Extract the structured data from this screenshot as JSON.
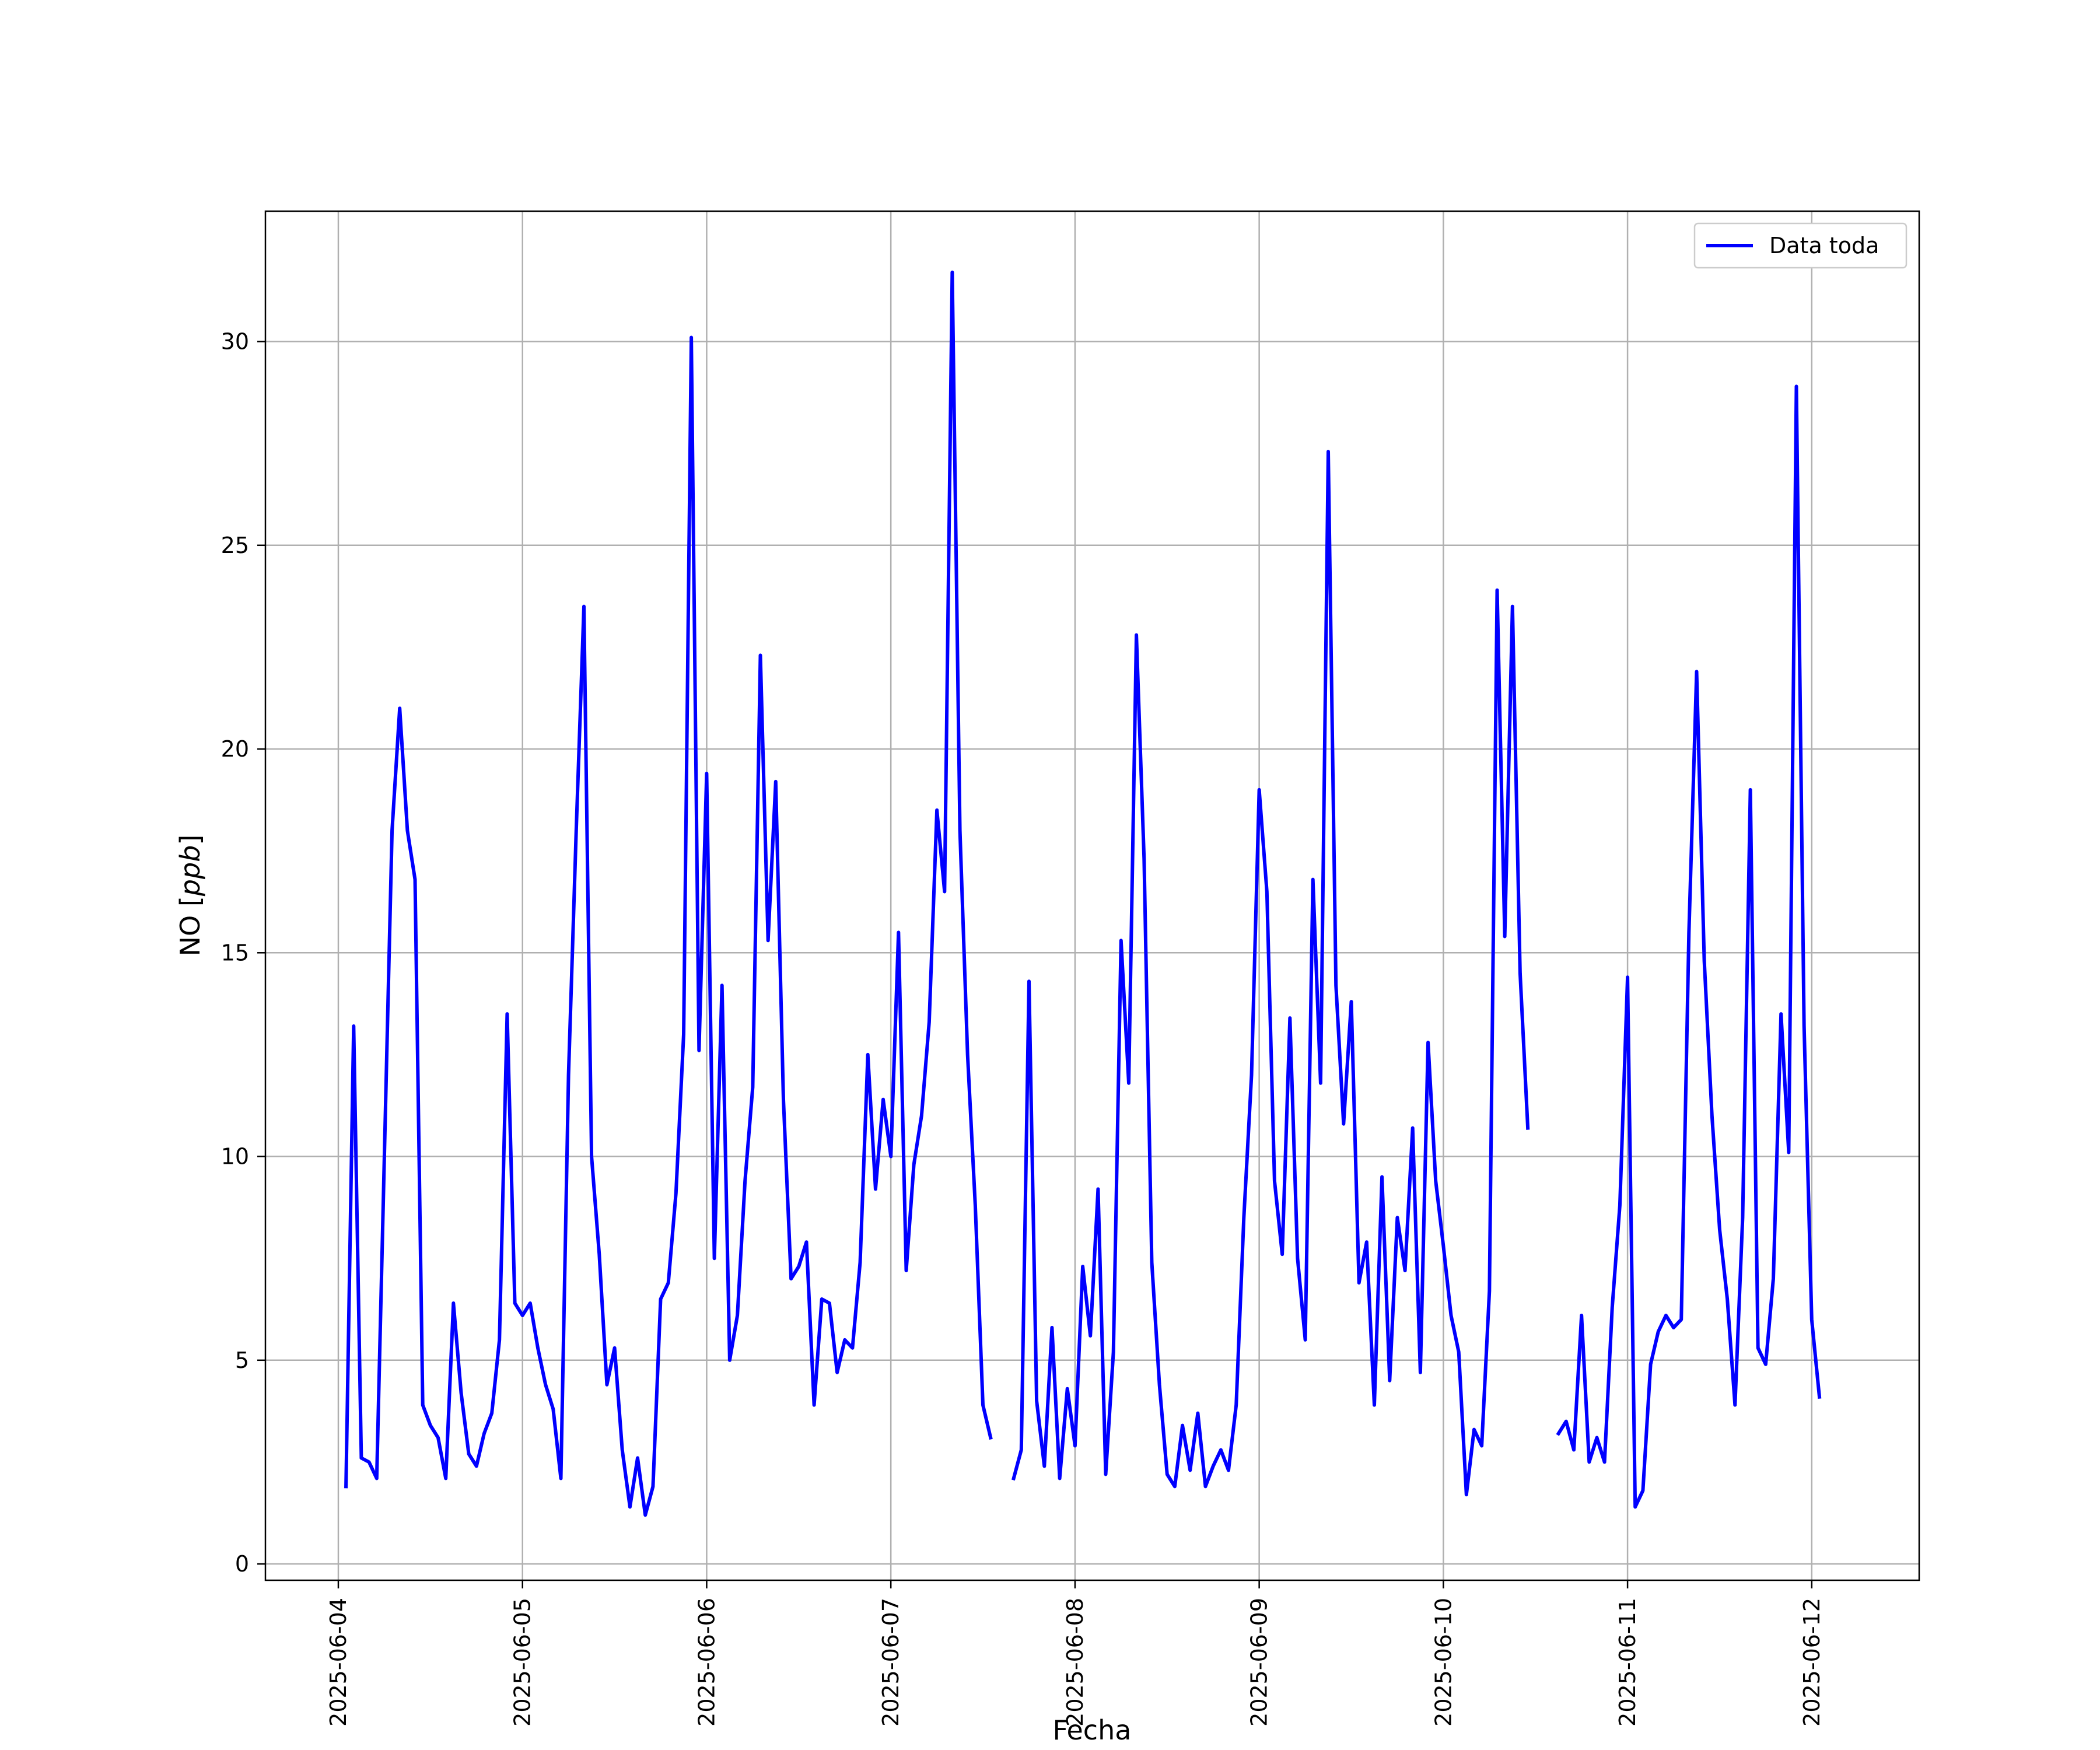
{
  "chart_data": {
    "type": "line",
    "xlabel": "Fecha",
    "ylabel": "NO [ppb]",
    "ylabel_prefix": "NO [",
    "ylabel_unit": "ppb",
    "ylabel_suffix": "]",
    "x_range": [
      "2025-06-03T14:30",
      "2025-06-12T14:00"
    ],
    "ylim": [
      -0.4,
      33.2
    ],
    "x_ticks": [
      "2025-06-04",
      "2025-06-05",
      "2025-06-06",
      "2025-06-07",
      "2025-06-08",
      "2025-06-09",
      "2025-06-10",
      "2025-06-11",
      "2025-06-12"
    ],
    "y_ticks": [
      "0",
      "5",
      "10",
      "15",
      "20",
      "25",
      "30"
    ],
    "grid": true,
    "legend_position": "top-right",
    "series": [
      {
        "name": "Data toda",
        "color": "#0000ff",
        "start": "2025-06-04T01:00",
        "interval_hours": 1,
        "values": [
          1.9,
          13.2,
          2.6,
          2.5,
          2.1,
          10.0,
          18.0,
          21.0,
          18.0,
          16.8,
          3.9,
          3.4,
          3.1,
          2.1,
          6.4,
          4.2,
          2.7,
          2.4,
          3.2,
          3.7,
          5.5,
          13.5,
          6.4,
          6.1,
          6.4,
          5.3,
          4.4,
          3.8,
          2.1,
          12.0,
          18.0,
          23.5,
          10.0,
          7.6,
          4.4,
          5.3,
          2.8,
          1.4,
          2.6,
          1.2,
          1.9,
          6.5,
          6.9,
          9.1,
          13.0,
          30.1,
          12.6,
          19.4,
          7.5,
          14.2,
          5.0,
          6.1,
          9.4,
          11.7,
          22.3,
          15.3,
          19.2,
          11.4,
          7.0,
          7.3,
          7.9,
          3.9,
          6.5,
          6.4,
          4.7,
          5.5,
          5.3,
          7.4,
          12.5,
          9.2,
          11.4,
          10.0,
          15.5,
          7.2,
          9.8,
          11.0,
          13.3,
          18.5,
          16.5,
          31.7,
          18.0,
          12.5,
          8.8,
          3.9,
          3.1,
          null,
          null,
          2.1,
          2.8,
          14.3,
          4.0,
          2.4,
          5.8,
          2.1,
          4.3,
          2.9,
          7.3,
          5.6,
          9.2,
          2.2,
          5.2,
          15.3,
          11.8,
          22.8,
          17.3,
          7.4,
          4.4,
          2.2,
          1.9,
          3.4,
          2.3,
          3.7,
          1.9,
          2.4,
          2.8,
          2.3,
          3.9,
          8.5,
          12.0,
          19.0,
          16.5,
          9.4,
          7.6,
          13.4,
          7.5,
          5.5,
          16.8,
          11.8,
          27.3,
          14.2,
          10.8,
          13.8,
          6.9,
          7.9,
          3.9,
          9.5,
          4.5,
          8.5,
          7.2,
          10.7,
          4.7,
          12.8,
          9.4,
          7.8,
          6.1,
          5.2,
          1.7,
          3.3,
          2.9,
          6.7,
          23.9,
          15.4,
          23.5,
          14.5,
          10.7,
          null,
          null,
          null,
          3.2,
          3.5,
          2.8,
          6.1,
          2.5,
          3.1,
          2.5,
          6.3,
          8.8,
          14.4,
          1.4,
          1.8,
          4.9,
          5.7,
          6.1,
          5.8,
          6.0,
          15.5,
          21.9,
          14.8,
          11.0,
          8.2,
          6.5,
          3.9,
          8.5,
          19.0,
          5.3,
          4.9,
          7.0,
          13.5,
          10.1,
          28.9,
          13.2,
          6.0,
          4.1
        ]
      }
    ]
  }
}
